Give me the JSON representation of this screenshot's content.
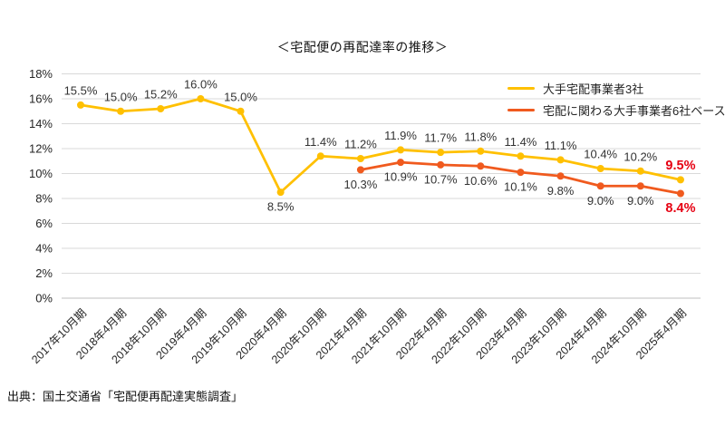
{
  "title": "＜宅配便の再配達率の推移＞",
  "source": "出典：国土交通省「宅配便再配達実態調査」",
  "colors": {
    "series1": "#FFC000",
    "series2": "#F05A1E",
    "highlight": "#E60012",
    "grid": "#D9D9D9",
    "axis": "#BFBFBF",
    "tick_text": "#262626",
    "label_text": "#333333"
  },
  "chart_data": {
    "type": "line",
    "title": "＜宅配便の再配達率の推移＞",
    "xlabel": "",
    "ylabel": "",
    "ylim": [
      0,
      18
    ],
    "ytick_step": 2,
    "ytick_suffix": "%",
    "grid": true,
    "legend_position": "top-right",
    "highlight_color": "#E60012",
    "categories": [
      "2017年10月期",
      "2018年4月期",
      "2018年10月期",
      "2019年4月期",
      "2019年10月期",
      "2020年4月期",
      "2020年10月期",
      "2021年4月期",
      "2021年10月期",
      "2022年4月期",
      "2022年10月期",
      "2023年4月期",
      "2023年10月期",
      "2024年4月期",
      "2024年10月期",
      "2025年4月期"
    ],
    "series": [
      {
        "name": "大手宅配事業者3社",
        "color_key": "series1",
        "start_index": 0,
        "values": [
          15.5,
          15.0,
          15.2,
          16.0,
          15.0,
          8.5,
          11.4,
          11.2,
          11.9,
          11.7,
          11.8,
          11.4,
          11.1,
          10.4,
          10.2,
          9.5
        ],
        "labels_position": "above",
        "label_overrides": {
          "5": "below"
        },
        "highlight_last": true
      },
      {
        "name": "宅配に関わる大手事業者6社ベース",
        "color_key": "series2",
        "start_index": 7,
        "values": [
          10.3,
          10.9,
          10.7,
          10.6,
          10.1,
          9.8,
          9.0,
          9.0,
          8.4
        ],
        "labels_position": "below",
        "label_overrides": {},
        "highlight_last": true
      }
    ]
  }
}
